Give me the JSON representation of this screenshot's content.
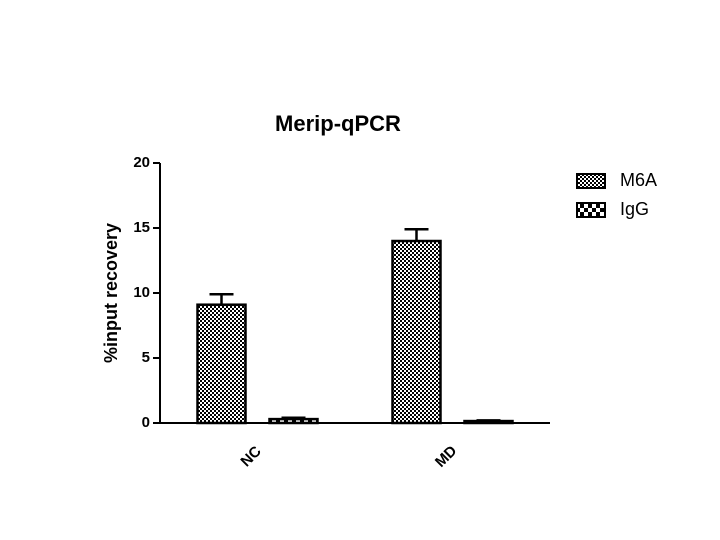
{
  "chart_data": {
    "type": "bar",
    "title": "Merip-qPCR",
    "y_label": "%input recovery",
    "categories": [
      "NC",
      "MD"
    ],
    "series": [
      {
        "name": "M6A",
        "color": "#000000",
        "pattern": "fine",
        "values": [
          9.1,
          14.0
        ],
        "errors": [
          0.8,
          0.9
        ]
      },
      {
        "name": "IgG",
        "color": "#000000",
        "pattern": "coarse",
        "values": [
          0.3,
          0.15
        ],
        "errors": [
          0.1,
          0.05
        ]
      }
    ],
    "ylim": [
      0,
      20
    ],
    "yticks": [
      0,
      5,
      10,
      15,
      20
    ],
    "legend": "right"
  }
}
